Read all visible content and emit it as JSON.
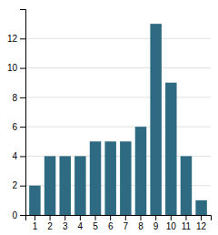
{
  "chart_data": {
    "type": "bar",
    "categories": [
      "1",
      "2",
      "3",
      "4",
      "5",
      "6",
      "7",
      "8",
      "9",
      "10",
      "11",
      "12"
    ],
    "values": [
      2,
      4,
      4,
      4,
      5,
      5,
      5,
      6,
      13,
      9,
      4,
      1
    ],
    "color": "#2e6b82",
    "ylim": [
      0,
      14
    ],
    "yticks": [
      0,
      2,
      4,
      6,
      8,
      10,
      12
    ],
    "grid": true
  }
}
